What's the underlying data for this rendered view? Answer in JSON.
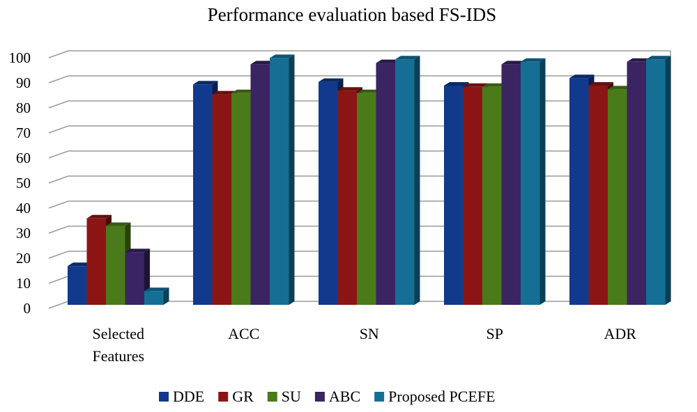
{
  "chart_data": {
    "type": "bar",
    "title": "Performance evaluation based FS-IDS",
    "categories": [
      "Selected Features",
      "ACC",
      "SN",
      "SP",
      "ADR"
    ],
    "category_lines": [
      [
        "Selected",
        "Features"
      ],
      [
        "ACC"
      ],
      [
        "SN"
      ],
      [
        "SP"
      ],
      [
        "ADR"
      ]
    ],
    "series": [
      {
        "name": "DDE",
        "values": [
          15.5,
          88,
          89,
          87.5,
          90.5
        ]
      },
      {
        "name": "GR",
        "values": [
          34.5,
          84,
          85.5,
          87,
          87.5
        ]
      },
      {
        "name": "SU",
        "values": [
          31.5,
          84.5,
          84.5,
          87,
          86
        ]
      },
      {
        "name": "ABC",
        "values": [
          21,
          96,
          96.5,
          96,
          97
        ]
      },
      {
        "name": "Proposed PCEFE",
        "values": [
          5.5,
          98.5,
          98,
          97,
          98
        ]
      }
    ],
    "colors": [
      "#123a8c",
      "#8b1515",
      "#4b7a1a",
      "#3a2462",
      "#156f95"
    ],
    "side_colors": [
      "#0a1f4d",
      "#4b0a0a",
      "#27430b",
      "#1e1235",
      "#0b3f55"
    ],
    "top_colors": [
      "#0c2a66",
      "#6a1010",
      "#385c12",
      "#2a1a48",
      "#0f5474"
    ],
    "yticks": [
      0,
      10,
      20,
      30,
      40,
      50,
      60,
      70,
      80,
      90,
      100
    ],
    "ylim": [
      0,
      100
    ],
    "xlabel": "",
    "ylabel": "",
    "grid": true,
    "legend_position": "bottom"
  }
}
